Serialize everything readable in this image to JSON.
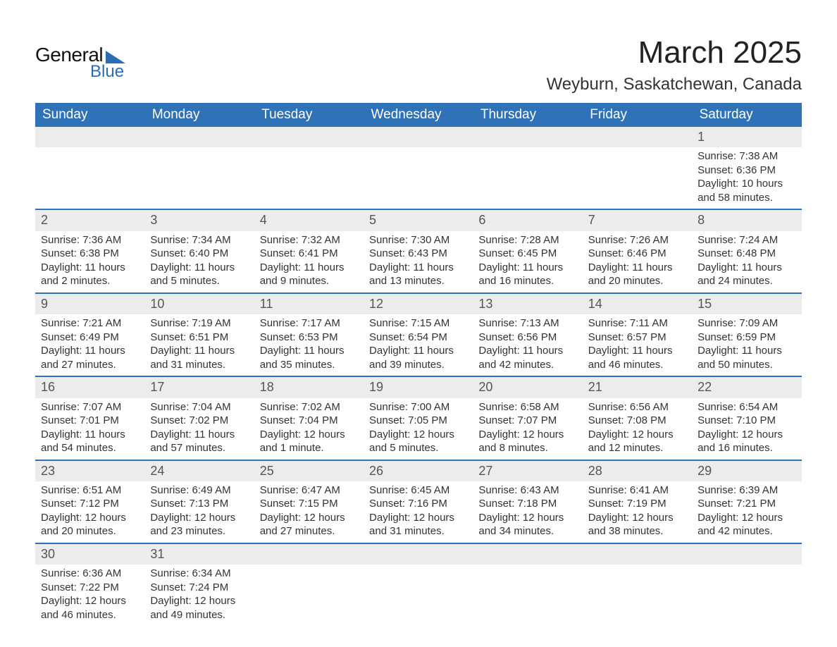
{
  "logo": {
    "line1": "General",
    "line2": "Blue"
  },
  "title": "March 2025",
  "location": "Weyburn, Saskatchewan, Canada",
  "colors": {
    "header_bg": "#2f72b8",
    "header_text": "#ffffff",
    "daynum_bg": "#ececec",
    "daynum_text": "#555555",
    "body_text": "#333333",
    "row_divider": "#2f72b8",
    "logo_accent": "#2a6db5"
  },
  "typography": {
    "title_fontsize": 44,
    "location_fontsize": 24,
    "header_fontsize": 19,
    "daynum_fontsize": 18,
    "cell_fontsize": 15
  },
  "calendar": {
    "type": "table",
    "columns": [
      "Sunday",
      "Monday",
      "Tuesday",
      "Wednesday",
      "Thursday",
      "Friday",
      "Saturday"
    ],
    "start_day_index": 6,
    "days": [
      {
        "n": 1,
        "sunrise": "7:38 AM",
        "sunset": "6:36 PM",
        "daylight": "10 hours and 58 minutes."
      },
      {
        "n": 2,
        "sunrise": "7:36 AM",
        "sunset": "6:38 PM",
        "daylight": "11 hours and 2 minutes."
      },
      {
        "n": 3,
        "sunrise": "7:34 AM",
        "sunset": "6:40 PM",
        "daylight": "11 hours and 5 minutes."
      },
      {
        "n": 4,
        "sunrise": "7:32 AM",
        "sunset": "6:41 PM",
        "daylight": "11 hours and 9 minutes."
      },
      {
        "n": 5,
        "sunrise": "7:30 AM",
        "sunset": "6:43 PM",
        "daylight": "11 hours and 13 minutes."
      },
      {
        "n": 6,
        "sunrise": "7:28 AM",
        "sunset": "6:45 PM",
        "daylight": "11 hours and 16 minutes."
      },
      {
        "n": 7,
        "sunrise": "7:26 AM",
        "sunset": "6:46 PM",
        "daylight": "11 hours and 20 minutes."
      },
      {
        "n": 8,
        "sunrise": "7:24 AM",
        "sunset": "6:48 PM",
        "daylight": "11 hours and 24 minutes."
      },
      {
        "n": 9,
        "sunrise": "7:21 AM",
        "sunset": "6:49 PM",
        "daylight": "11 hours and 27 minutes."
      },
      {
        "n": 10,
        "sunrise": "7:19 AM",
        "sunset": "6:51 PM",
        "daylight": "11 hours and 31 minutes."
      },
      {
        "n": 11,
        "sunrise": "7:17 AM",
        "sunset": "6:53 PM",
        "daylight": "11 hours and 35 minutes."
      },
      {
        "n": 12,
        "sunrise": "7:15 AM",
        "sunset": "6:54 PM",
        "daylight": "11 hours and 39 minutes."
      },
      {
        "n": 13,
        "sunrise": "7:13 AM",
        "sunset": "6:56 PM",
        "daylight": "11 hours and 42 minutes."
      },
      {
        "n": 14,
        "sunrise": "7:11 AM",
        "sunset": "6:57 PM",
        "daylight": "11 hours and 46 minutes."
      },
      {
        "n": 15,
        "sunrise": "7:09 AM",
        "sunset": "6:59 PM",
        "daylight": "11 hours and 50 minutes."
      },
      {
        "n": 16,
        "sunrise": "7:07 AM",
        "sunset": "7:01 PM",
        "daylight": "11 hours and 54 minutes."
      },
      {
        "n": 17,
        "sunrise": "7:04 AM",
        "sunset": "7:02 PM",
        "daylight": "11 hours and 57 minutes."
      },
      {
        "n": 18,
        "sunrise": "7:02 AM",
        "sunset": "7:04 PM",
        "daylight": "12 hours and 1 minute."
      },
      {
        "n": 19,
        "sunrise": "7:00 AM",
        "sunset": "7:05 PM",
        "daylight": "12 hours and 5 minutes."
      },
      {
        "n": 20,
        "sunrise": "6:58 AM",
        "sunset": "7:07 PM",
        "daylight": "12 hours and 8 minutes."
      },
      {
        "n": 21,
        "sunrise": "6:56 AM",
        "sunset": "7:08 PM",
        "daylight": "12 hours and 12 minutes."
      },
      {
        "n": 22,
        "sunrise": "6:54 AM",
        "sunset": "7:10 PM",
        "daylight": "12 hours and 16 minutes."
      },
      {
        "n": 23,
        "sunrise": "6:51 AM",
        "sunset": "7:12 PM",
        "daylight": "12 hours and 20 minutes."
      },
      {
        "n": 24,
        "sunrise": "6:49 AM",
        "sunset": "7:13 PM",
        "daylight": "12 hours and 23 minutes."
      },
      {
        "n": 25,
        "sunrise": "6:47 AM",
        "sunset": "7:15 PM",
        "daylight": "12 hours and 27 minutes."
      },
      {
        "n": 26,
        "sunrise": "6:45 AM",
        "sunset": "7:16 PM",
        "daylight": "12 hours and 31 minutes."
      },
      {
        "n": 27,
        "sunrise": "6:43 AM",
        "sunset": "7:18 PM",
        "daylight": "12 hours and 34 minutes."
      },
      {
        "n": 28,
        "sunrise": "6:41 AM",
        "sunset": "7:19 PM",
        "daylight": "12 hours and 38 minutes."
      },
      {
        "n": 29,
        "sunrise": "6:39 AM",
        "sunset": "7:21 PM",
        "daylight": "12 hours and 42 minutes."
      },
      {
        "n": 30,
        "sunrise": "6:36 AM",
        "sunset": "7:22 PM",
        "daylight": "12 hours and 46 minutes."
      },
      {
        "n": 31,
        "sunrise": "6:34 AM",
        "sunset": "7:24 PM",
        "daylight": "12 hours and 49 minutes."
      }
    ],
    "labels": {
      "sunrise": "Sunrise:",
      "sunset": "Sunset:",
      "daylight": "Daylight:"
    }
  }
}
